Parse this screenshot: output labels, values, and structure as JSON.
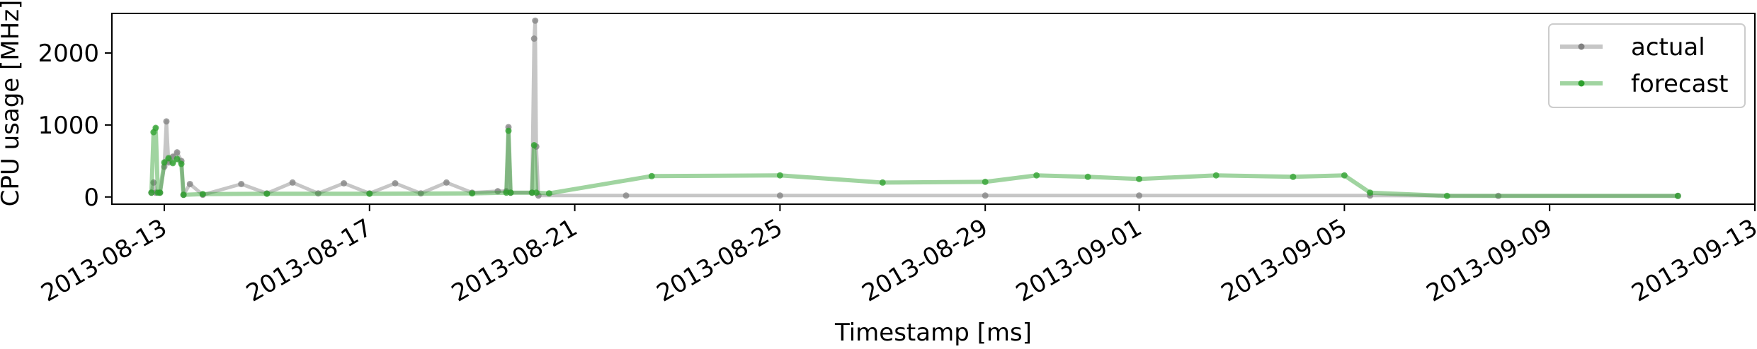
{
  "chart_data": {
    "type": "line",
    "title": "",
    "xlabel": "Timestamp [ms]",
    "ylabel": "CPU usage [MHz]",
    "x_scale": "time",
    "xlim": [
      "2013-08-11T23:30",
      "2013-09-13T00:00"
    ],
    "ylim": [
      -100,
      2550
    ],
    "x_ticks": [
      "2013-08-13",
      "2013-08-17",
      "2013-08-21",
      "2013-08-25",
      "2013-08-29",
      "2013-09-01",
      "2013-09-05",
      "2013-09-09",
      "2013-09-13"
    ],
    "y_ticks": [
      0,
      1000,
      2000
    ],
    "grid": false,
    "legend": {
      "position": "top-right",
      "entries": [
        "actual",
        "forecast"
      ]
    },
    "series": [
      {
        "name": "actual",
        "color": "#808080",
        "style": "line with dot markers, semi-transparent",
        "points": [
          [
            "2013-08-12T18:00",
            60
          ],
          [
            "2013-08-12T19:00",
            200
          ],
          [
            "2013-08-12T20:00",
            60
          ],
          [
            "2013-08-12T22:00",
            60
          ],
          [
            "2013-08-13T00:00",
            420
          ],
          [
            "2013-08-13T01:00",
            1050
          ],
          [
            "2013-08-13T02:00",
            480
          ],
          [
            "2013-08-13T04:00",
            560
          ],
          [
            "2013-08-13T06:00",
            620
          ],
          [
            "2013-08-13T08:00",
            500
          ],
          [
            "2013-08-13T09:00",
            30
          ],
          [
            "2013-08-13T12:00",
            180
          ],
          [
            "2013-08-13T18:00",
            30
          ],
          [
            "2013-08-14T12:00",
            180
          ],
          [
            "2013-08-15T00:00",
            50
          ],
          [
            "2013-08-15T12:00",
            200
          ],
          [
            "2013-08-16T00:00",
            50
          ],
          [
            "2013-08-16T12:00",
            190
          ],
          [
            "2013-08-17T00:00",
            50
          ],
          [
            "2013-08-17T12:00",
            190
          ],
          [
            "2013-08-18T00:00",
            50
          ],
          [
            "2013-08-18T12:00",
            200
          ],
          [
            "2013-08-19T00:00",
            60
          ],
          [
            "2013-08-19T12:00",
            80
          ],
          [
            "2013-08-19T16:00",
            80
          ],
          [
            "2013-08-19T17:00",
            970
          ],
          [
            "2013-08-19T18:00",
            60
          ],
          [
            "2013-08-20T04:00",
            60
          ],
          [
            "2013-08-20T05:00",
            2200
          ],
          [
            "2013-08-20T05:30",
            2450
          ],
          [
            "2013-08-20T06:00",
            700
          ],
          [
            "2013-08-20T07:00",
            20
          ],
          [
            "2013-08-22T00:00",
            20
          ],
          [
            "2013-08-25T00:00",
            20
          ],
          [
            "2013-08-29T00:00",
            20
          ],
          [
            "2013-09-01T00:00",
            20
          ],
          [
            "2013-09-05T12:00",
            20
          ],
          [
            "2013-09-08T00:00",
            15
          ],
          [
            "2013-09-11T12:00",
            15
          ]
        ]
      },
      {
        "name": "forecast",
        "color": "#2ca02c",
        "style": "line with dot markers, semi-transparent",
        "points": [
          [
            "2013-08-12T18:00",
            60
          ],
          [
            "2013-08-12T19:00",
            900
          ],
          [
            "2013-08-12T20:00",
            960
          ],
          [
            "2013-08-12T21:00",
            60
          ],
          [
            "2013-08-12T22:00",
            60
          ],
          [
            "2013-08-13T00:00",
            480
          ],
          [
            "2013-08-13T02:00",
            540
          ],
          [
            "2013-08-13T04:00",
            470
          ],
          [
            "2013-08-13T06:00",
            530
          ],
          [
            "2013-08-13T08:00",
            460
          ],
          [
            "2013-08-13T09:00",
            30
          ],
          [
            "2013-08-13T18:00",
            40
          ],
          [
            "2013-08-15T00:00",
            45
          ],
          [
            "2013-08-17T00:00",
            45
          ],
          [
            "2013-08-19T00:00",
            50
          ],
          [
            "2013-08-19T16:00",
            60
          ],
          [
            "2013-08-19T17:00",
            920
          ],
          [
            "2013-08-19T18:00",
            60
          ],
          [
            "2013-08-20T04:00",
            60
          ],
          [
            "2013-08-20T05:00",
            720
          ],
          [
            "2013-08-20T06:00",
            60
          ],
          [
            "2013-08-20T12:00",
            50
          ],
          [
            "2013-08-22T12:00",
            290
          ],
          [
            "2013-08-25T00:00",
            300
          ],
          [
            "2013-08-27T00:00",
            200
          ],
          [
            "2013-08-29T00:00",
            210
          ],
          [
            "2013-08-30T00:00",
            300
          ],
          [
            "2013-08-31T00:00",
            280
          ],
          [
            "2013-09-01T00:00",
            250
          ],
          [
            "2013-09-02T12:00",
            300
          ],
          [
            "2013-09-04T00:00",
            280
          ],
          [
            "2013-09-05T00:00",
            300
          ],
          [
            "2013-09-05T12:00",
            60
          ],
          [
            "2013-09-07T00:00",
            15
          ],
          [
            "2013-09-11T12:00",
            15
          ]
        ]
      }
    ]
  }
}
